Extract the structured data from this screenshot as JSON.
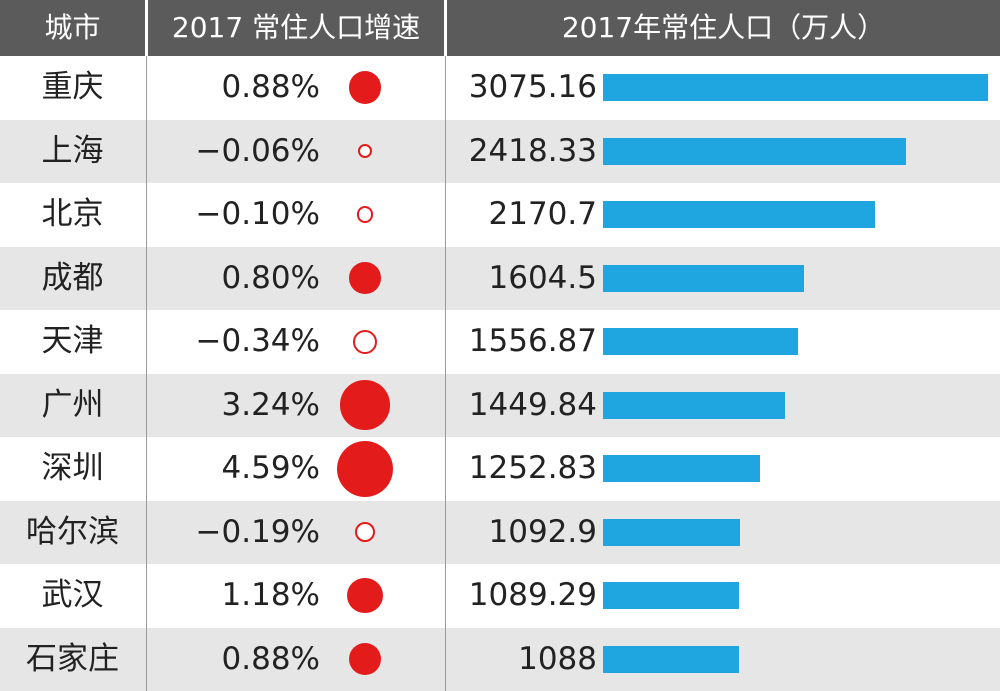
{
  "colors": {
    "header_bg": "#5b5b5b",
    "header_text": "#ffffff",
    "row_alt_bg": "#e6e6e6",
    "bar": "#1fa6e1",
    "dot": "#e31b1b",
    "divider": "#9a9a9a"
  },
  "header": {
    "city": "城市",
    "growth": "2017 常住人口增速",
    "population": "2017年常住人口（万人）"
  },
  "chart_data": {
    "type": "table",
    "columns": [
      "城市",
      "2017 常住人口增速",
      "2017年常住人口（万人）"
    ],
    "population_axis": [
      0,
      3075.16
    ],
    "rows": [
      {
        "city": "重庆",
        "growth": "0.88%",
        "growth_value": 0.88,
        "population": "3075.16",
        "population_value": 3075.16
      },
      {
        "city": "上海",
        "growth": "−0.06%",
        "growth_value": -0.06,
        "population": "2418.33",
        "population_value": 2418.33
      },
      {
        "city": "北京",
        "growth": "−0.10%",
        "growth_value": -0.1,
        "population": "2170.7",
        "population_value": 2170.7
      },
      {
        "city": "成都",
        "growth": "0.80%",
        "growth_value": 0.8,
        "population": "1604.5",
        "population_value": 1604.5
      },
      {
        "city": "天津",
        "growth": "−0.34%",
        "growth_value": -0.34,
        "population": "1556.87",
        "population_value": 1556.87
      },
      {
        "city": "广州",
        "growth": "3.24%",
        "growth_value": 3.24,
        "population": "1449.84",
        "population_value": 1449.84
      },
      {
        "city": "深圳",
        "growth": "4.59%",
        "growth_value": 4.59,
        "population": "1252.83",
        "population_value": 1252.83
      },
      {
        "city": "哈尔滨",
        "growth": "−0.19%",
        "growth_value": -0.19,
        "population": "1092.9",
        "population_value": 1092.9
      },
      {
        "city": "武汉",
        "growth": "1.18%",
        "growth_value": 1.18,
        "population": "1089.29",
        "population_value": 1089.29
      },
      {
        "city": "石家庄",
        "growth": "0.88%",
        "growth_value": 0.88,
        "population": "1088",
        "population_value": 1088
      }
    ]
  }
}
